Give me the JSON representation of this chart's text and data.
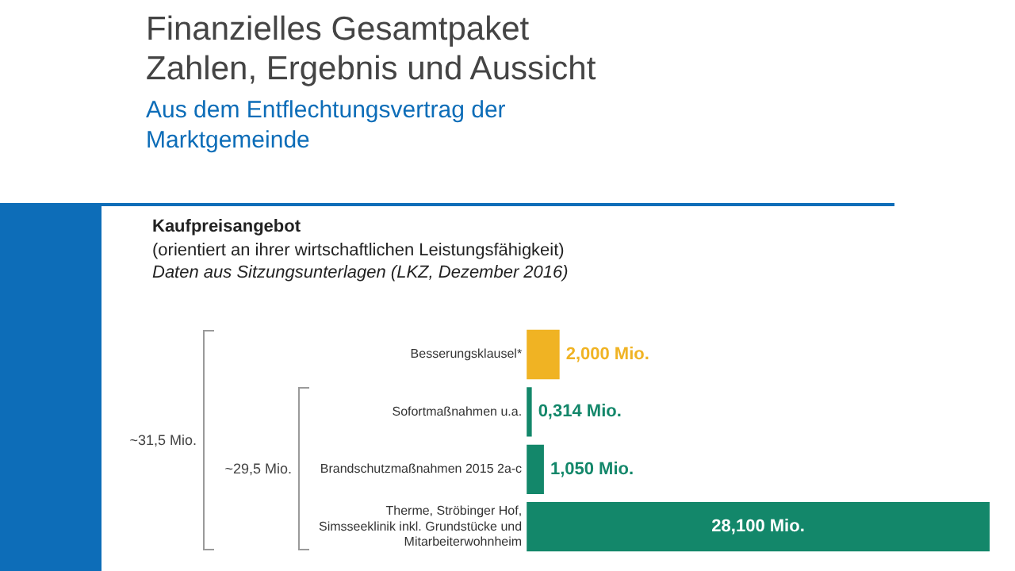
{
  "chart_data": {
    "type": "bar",
    "orientation": "horizontal",
    "title": "Finanzielles Gesamtpaket Zahlen, Ergebnis und Aussicht",
    "subtitle": "Aus dem Entflechtungsvertrag der Marktgemeinde",
    "annotations": [
      "Kaufpreisangebot",
      "(orientiert an ihrer wirtschaftlichen Leistungsfähigkeit)",
      "Daten aus Sitzungsunterlagen (LKZ, Dezember 2016)",
      "~31,5 Mio.",
      "~29,5 Mio."
    ],
    "categories": [
      "Besserungsklausel*",
      "Sofortmaßnahmen u.a.",
      "Brandschutzmaßnahmen 2015 2a-c",
      "Therme, Ströbinger Hof, Simsseeklinik inkl. Grundstücke und Mitarbeiterwohnheim"
    ],
    "values": [
      2.0,
      0.314,
      1.05,
      28.1
    ],
    "colors": [
      "#f0b323",
      "#13876a",
      "#13876a",
      "#13876a"
    ],
    "value_labels": [
      "2,000 Mio.",
      "0,314 Mio.",
      "1,050 Mio.",
      "28,100 Mio."
    ],
    "legend": false,
    "grid": false,
    "tick_labels": "y"
  }
}
